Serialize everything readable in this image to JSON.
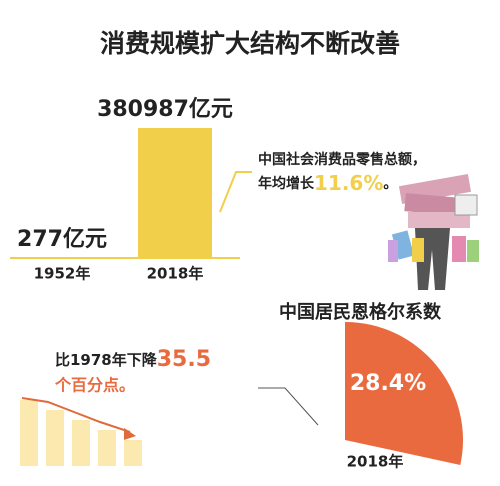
{
  "title": "消费规模扩大结构不断改善",
  "chart_data": [
    {
      "type": "bar",
      "categories": [
        "1952年",
        "2018年"
      ],
      "values": [
        277,
        380987
      ],
      "value_labels": [
        "277亿元",
        "380987亿元"
      ],
      "color": "#f2cf4a",
      "annotation": {
        "line1": "中国社会消费品零售总额，",
        "line2_prefix": "年均增长",
        "line2_highlight": "11.6%",
        "line2_suffix": "。"
      }
    },
    {
      "type": "pie",
      "title": "中国居民恩格尔系数",
      "categories": [
        "2018年"
      ],
      "values": [
        28.4
      ],
      "value_labels": [
        "28.4%"
      ],
      "color": "#ea6a3f",
      "annotation": {
        "line1_prefix": "比1978年下降",
        "line1_highlight": "35.5",
        "line2": "个百分点。"
      }
    }
  ]
}
